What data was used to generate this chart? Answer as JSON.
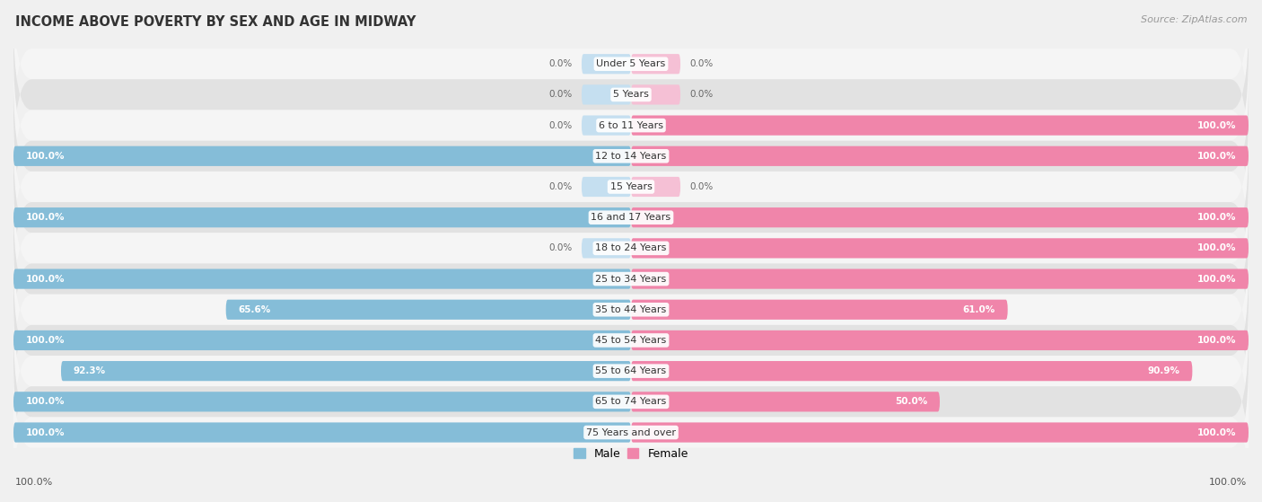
{
  "title": "INCOME ABOVE POVERTY BY SEX AND AGE IN MIDWAY",
  "source": "Source: ZipAtlas.com",
  "categories": [
    "Under 5 Years",
    "5 Years",
    "6 to 11 Years",
    "12 to 14 Years",
    "15 Years",
    "16 and 17 Years",
    "18 to 24 Years",
    "25 to 34 Years",
    "35 to 44 Years",
    "45 to 54 Years",
    "55 to 64 Years",
    "65 to 74 Years",
    "75 Years and over"
  ],
  "male": [
    0.0,
    0.0,
    0.0,
    100.0,
    0.0,
    100.0,
    0.0,
    100.0,
    65.6,
    100.0,
    92.3,
    100.0,
    100.0
  ],
  "female": [
    0.0,
    0.0,
    100.0,
    100.0,
    0.0,
    100.0,
    100.0,
    100.0,
    61.0,
    100.0,
    90.9,
    50.0,
    100.0
  ],
  "male_color": "#85bdd8",
  "female_color": "#f085aa",
  "male_color_light": "#c5dff0",
  "female_color_light": "#f5c0d5",
  "bg_color": "#f0f0f0",
  "row_color_dark": "#e2e2e2",
  "row_color_light": "#f5f5f5",
  "legend_male": "Male",
  "legend_female": "Female",
  "x_axis_label_left": "100.0%",
  "x_axis_label_right": "100.0%"
}
